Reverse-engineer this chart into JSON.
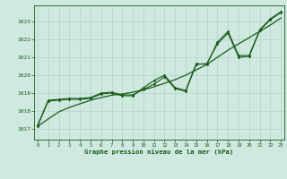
{
  "title": "Graphe pression niveau de la mer (hPa)",
  "background_color": "#cfe8e0",
  "grid_color": "#b0d4c8",
  "line_color": "#1a5c1a",
  "x_ticks": [
    0,
    1,
    2,
    3,
    4,
    5,
    6,
    7,
    8,
    9,
    10,
    11,
    12,
    13,
    14,
    15,
    16,
    17,
    18,
    19,
    20,
    21,
    22,
    23
  ],
  "y_ticks": [
    1017,
    1018,
    1019,
    1020,
    1021,
    1022,
    1023
  ],
  "ylim": [
    1016.4,
    1023.9
  ],
  "xlim": [
    -0.3,
    23.3
  ],
  "series1": [
    1017.2,
    1018.6,
    1018.65,
    1018.7,
    1018.7,
    1018.75,
    1019.0,
    1019.05,
    1018.9,
    1018.9,
    1019.2,
    1019.5,
    1019.9,
    1019.25,
    1019.1,
    1020.6,
    1020.65,
    1021.75,
    1022.35,
    1021.0,
    1021.05,
    1022.5,
    1023.1,
    1023.5
  ],
  "series2": [
    1017.15,
    1018.55,
    1018.6,
    1018.65,
    1018.65,
    1018.7,
    1018.95,
    1019.0,
    1018.85,
    1018.85,
    1019.3,
    1019.7,
    1020.0,
    1019.3,
    1019.15,
    1020.65,
    1020.6,
    1021.85,
    1022.45,
    1021.1,
    1021.1,
    1022.55,
    1023.15,
    1023.55
  ],
  "trend": [
    1017.15,
    1017.55,
    1017.95,
    1018.2,
    1018.4,
    1018.6,
    1018.75,
    1018.88,
    1018.95,
    1019.05,
    1019.18,
    1019.35,
    1019.55,
    1019.75,
    1020.0,
    1020.3,
    1020.6,
    1021.0,
    1021.4,
    1021.75,
    1022.1,
    1022.45,
    1022.8,
    1023.2
  ]
}
